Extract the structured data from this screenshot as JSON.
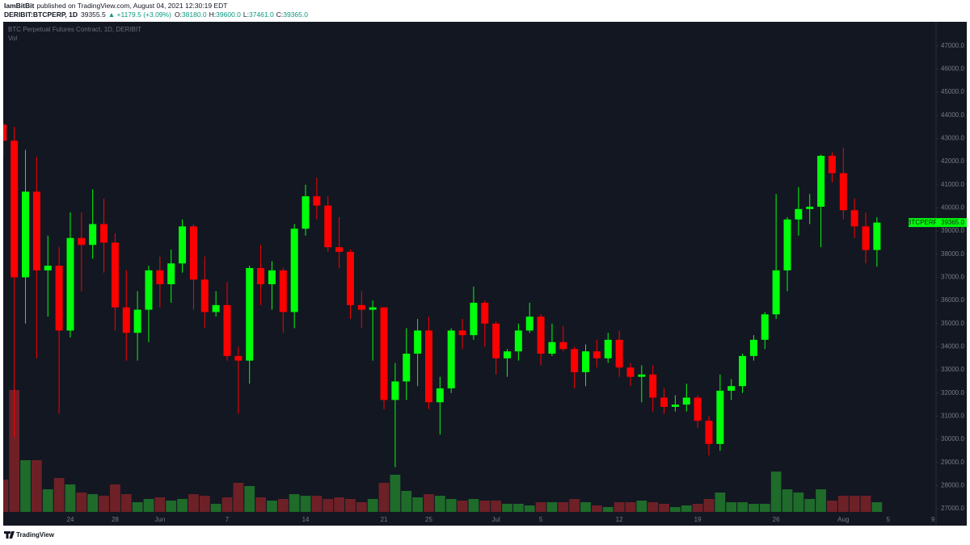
{
  "header": {
    "author": "IamBitBit",
    "published": "published on TradingView.com, August 04, 2021 12:30:19 EDT",
    "symbol": "DERIBIT:BTCPERP, 1D",
    "last": "39355.5",
    "change": "▲ +1179.5 (+3.09%)",
    "o_label": "O:",
    "o": "38180.0",
    "h_label": "H:",
    "h": "39600.0",
    "l_label": "L:",
    "l": "37461.0",
    "c_label": "C:",
    "c": "39365.0"
  },
  "footer": {
    "brand": "TradingView"
  },
  "chart_data": {
    "type": "candlestick",
    "title": "BTC Perpetual Futures Contract, 1D, DERIBIT",
    "categories": [
      null,
      null,
      null,
      null,
      null,
      null,
      "24",
      null,
      null,
      null,
      "28",
      null,
      null,
      null,
      "Jun",
      null,
      null,
      null,
      null,
      null,
      "7",
      null,
      null,
      null,
      null,
      null,
      null,
      "14",
      null,
      null,
      null,
      null,
      null,
      null,
      "21",
      null,
      null,
      null,
      "25",
      null,
      null,
      null,
      null,
      null,
      "Jul",
      null,
      null,
      null,
      "5",
      null,
      null,
      null,
      null,
      null,
      null,
      "12",
      null,
      null,
      null,
      null,
      null,
      null,
      "19",
      null,
      null,
      null,
      null,
      null,
      null,
      "26",
      null,
      null,
      null,
      null,
      null,
      "Aug",
      null,
      null,
      null,
      "5",
      null,
      null,
      null,
      "9"
    ],
    "open": [
      43600,
      42900,
      37000,
      40700,
      37300,
      37500,
      34700,
      38700,
      38400,
      39300,
      38500,
      35700,
      34600,
      35600,
      37300,
      36700,
      37600,
      39200,
      36900,
      35500,
      35800,
      33600,
      33400,
      37400,
      36700,
      37300,
      35500,
      39100,
      40500,
      40100,
      38300,
      38100,
      35800,
      35600,
      35700,
      31700,
      32500,
      33700,
      34700,
      31600,
      32200,
      34700,
      34500,
      35900,
      35000,
      33500,
      33800,
      34700,
      35300,
      33700,
      34200,
      33900,
      32900,
      33800,
      33500,
      34300,
      33100,
      32700,
      32800,
      31800,
      31400,
      31500,
      31800,
      30800,
      29800,
      32100,
      32300,
      33600,
      34300,
      35400,
      37300,
      39500,
      39950,
      40050,
      42250,
      41500,
      39900,
      39200,
      38180,
      null,
      null,
      null,
      null,
      null
    ],
    "high": [
      43700,
      43500,
      42500,
      42200,
      38800,
      38300,
      39800,
      39800,
      40800,
      40400,
      38900,
      37300,
      36400,
      37500,
      37900,
      38200,
      39500,
      39300,
      37900,
      36400,
      36800,
      34000,
      37500,
      38400,
      37700,
      37400,
      39300,
      41000,
      41300,
      40500,
      39600,
      38200,
      36400,
      36000,
      35700,
      33300,
      34800,
      35200,
      35300,
      32700,
      34800,
      35200,
      36600,
      36000,
      35100,
      33900,
      35000,
      35900,
      35400,
      35000,
      34900,
      34000,
      34100,
      34300,
      34600,
      34700,
      33300,
      33200,
      33200,
      32200,
      31900,
      32400,
      31900,
      31000,
      32800,
      32600,
      33700,
      34500,
      35500,
      40600,
      39600,
      40900,
      40600,
      42300,
      42400,
      42600,
      40400,
      39800,
      39600,
      null,
      null,
      null,
      null,
      null
    ],
    "low": [
      42200,
      30100,
      35000,
      33500,
      35300,
      31100,
      34400,
      36400,
      37800,
      37200,
      34700,
      33400,
      33400,
      34200,
      35700,
      35900,
      37200,
      35600,
      34800,
      35300,
      33400,
      31100,
      32400,
      35800,
      35600,
      34600,
      34800,
      38800,
      39500,
      38100,
      37400,
      35200,
      34800,
      33400,
      31300,
      28800,
      31700,
      32300,
      31300,
      30200,
      32000,
      33900,
      34300,
      34000,
      32800,
      32700,
      33400,
      34600,
      33200,
      33600,
      33800,
      32200,
      32300,
      33100,
      33300,
      32700,
      32300,
      31600,
      31200,
      31100,
      31200,
      31200,
      30500,
      29300,
      29500,
      31700,
      32000,
      33400,
      33900,
      35200,
      36400,
      38800,
      39300,
      38300,
      41100,
      39500,
      38700,
      37600,
      37461,
      null,
      null,
      null,
      null,
      null
    ],
    "close": [
      42900,
      37000,
      40700,
      37300,
      37500,
      34700,
      38700,
      38400,
      39300,
      38500,
      35700,
      34600,
      35600,
      37300,
      36700,
      37600,
      39200,
      36900,
      35500,
      35800,
      33600,
      33400,
      37400,
      36700,
      37300,
      35500,
      39100,
      40500,
      40100,
      38300,
      38100,
      35800,
      35600,
      35700,
      31700,
      32500,
      33700,
      34700,
      31600,
      32200,
      34700,
      34500,
      35900,
      35000,
      33500,
      33800,
      34700,
      35300,
      33700,
      34200,
      33900,
      32900,
      33800,
      33500,
      34300,
      33100,
      32700,
      32800,
      31800,
      31400,
      31500,
      31800,
      30800,
      29800,
      32100,
      32300,
      33600,
      34300,
      35400,
      37300,
      39500,
      39950,
      40050,
      42250,
      41500,
      39900,
      39200,
      38180,
      39365,
      null,
      null,
      null,
      null,
      null
    ],
    "up_color": "#00ff0a",
    "down_color": "#ff0000",
    "volume": {
      "name": "Vol",
      "up_color": "#1e6b2a",
      "down_color": "#6e2027",
      "values": [
        40,
        151,
        64,
        64,
        28,
        42,
        34,
        24,
        22,
        20,
        34,
        22,
        12,
        16,
        18,
        14,
        16,
        22,
        20,
        10,
        18,
        36,
        32,
        18,
        14,
        16,
        22,
        20,
        20,
        16,
        18,
        16,
        12,
        16,
        36,
        46,
        26,
        18,
        22,
        20,
        16,
        14,
        16,
        14,
        14,
        10,
        10,
        8,
        12,
        12,
        12,
        16,
        12,
        8,
        6,
        12,
        12,
        14,
        12,
        10,
        6,
        8,
        10,
        16,
        24,
        12,
        12,
        10,
        10,
        50,
        28,
        24,
        16,
        28,
        14,
        20,
        20,
        20,
        12,
        null,
        null,
        null,
        null,
        null
      ]
    },
    "ylim": [
      26270,
      48040
    ],
    "yticks": [
      {
        "value": 27000,
        "label": "27000.0"
      },
      {
        "value": 28000,
        "label": "28000.0"
      },
      {
        "value": 29000,
        "label": "29000.0"
      },
      {
        "value": 30000,
        "label": "30000.0"
      },
      {
        "value": 31000,
        "label": "31000.0"
      },
      {
        "value": 32000,
        "label": "32000.0"
      },
      {
        "value": 33000,
        "label": "33000.0"
      },
      {
        "value": 34000,
        "label": "34000.0"
      },
      {
        "value": 35000,
        "label": "35000.0"
      },
      {
        "value": 36000,
        "label": "36000.0"
      },
      {
        "value": 37000,
        "label": "37000.0"
      },
      {
        "value": 38000,
        "label": "38000.0"
      },
      {
        "value": 39000,
        "label": "39000.0"
      },
      {
        "value": 40000,
        "label": "40000.0"
      },
      {
        "value": 41000,
        "label": "41000.0"
      },
      {
        "value": 42000,
        "label": "42000.0"
      },
      {
        "value": 43000,
        "label": "43000.0"
      },
      {
        "value": 44000,
        "label": "44000.0"
      },
      {
        "value": 45000,
        "label": "45000.0"
      },
      {
        "value": 46000,
        "label": "46000.0"
      },
      {
        "value": 47000,
        "label": "47000.0"
      }
    ],
    "price_tag": {
      "name": "BTCPERP",
      "value": 39365,
      "label": "39365.0",
      "color": "#00ff0a"
    }
  }
}
